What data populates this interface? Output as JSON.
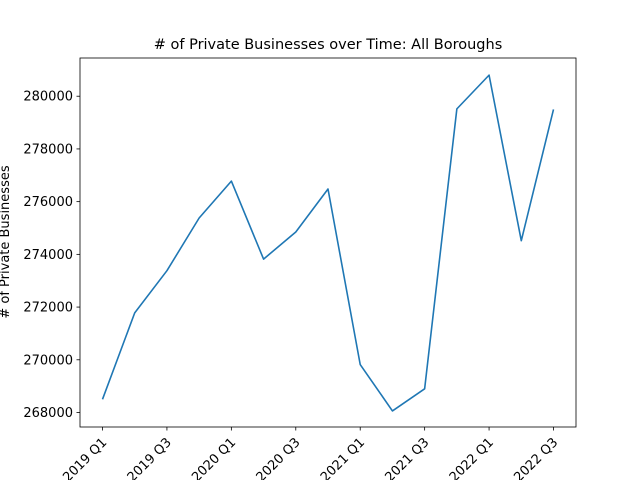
{
  "chart_data": {
    "type": "line",
    "title": "# of Private Businesses over Time: All Boroughs",
    "xlabel": "",
    "ylabel": "# of Private Businesses",
    "categories": [
      "2019 Q1",
      "2019 Q2",
      "2019 Q3",
      "2019 Q4",
      "2020 Q1",
      "2020 Q2",
      "2020 Q3",
      "2020 Q4",
      "2021 Q1",
      "2021 Q2",
      "2021 Q3",
      "2021 Q4",
      "2022 Q1",
      "2022 Q2",
      "2022 Q3"
    ],
    "xtick_labels": [
      "2019 Q1",
      "2019 Q3",
      "2020 Q1",
      "2020 Q3",
      "2021 Q1",
      "2021 Q3",
      "2022 Q1",
      "2022 Q3"
    ],
    "series": [
      {
        "color": "#1f77b4",
        "values": [
          268500,
          271780,
          273380,
          275380,
          276780,
          273820,
          274850,
          276480,
          269820,
          268060,
          268900,
          279520,
          280800,
          274520,
          279500
        ]
      }
    ],
    "yticks": [
      268000,
      270000,
      272000,
      274000,
      276000,
      278000,
      280000
    ],
    "ylim": [
      267450,
      281450
    ],
    "grid": false,
    "legend": "none"
  }
}
